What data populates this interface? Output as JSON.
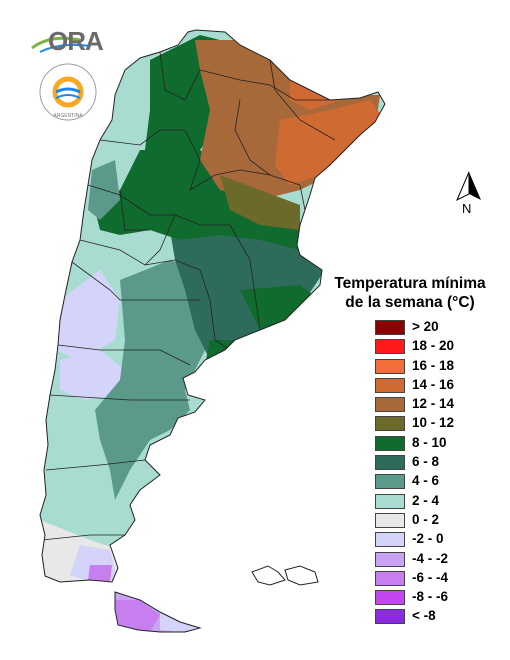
{
  "logo": {
    "text": "ORA"
  },
  "seal": {
    "text": "ARGENTINA"
  },
  "north_arrow": {
    "label": "N"
  },
  "legend": {
    "title_line1": "Temperatura mínima",
    "title_line2": "de la semana (°C)",
    "items": [
      {
        "label": "> 20",
        "color": "#8b0000"
      },
      {
        "label": "18 - 20",
        "color": "#ff1a1a"
      },
      {
        "label": "16 - 18",
        "color": "#f26d3a"
      },
      {
        "label": "14 - 16",
        "color": "#cf6a33"
      },
      {
        "label": "12 - 14",
        "color": "#a8693a"
      },
      {
        "label": "10 - 12",
        "color": "#6b6a2a"
      },
      {
        "label": "8 - 10",
        "color": "#0f6b2e"
      },
      {
        "label": "6 - 8",
        "color": "#2f6b5b"
      },
      {
        "label": "4 - 6",
        "color": "#5b9a8b"
      },
      {
        "label": "2 - 4",
        "color": "#a8dcd1"
      },
      {
        "label": "0 - 2",
        "color": "#e8e8e8"
      },
      {
        "label": "-2 - 0",
        "color": "#d4d4fb"
      },
      {
        "label": "-4 - -2",
        "color": "#c9a3f2"
      },
      {
        "label": "-6 - -4",
        "color": "#c77ff0"
      },
      {
        "label": "-8 - -6",
        "color": "#c347f0"
      },
      {
        "label": "< -8",
        "color": "#8a2be2"
      }
    ]
  }
}
